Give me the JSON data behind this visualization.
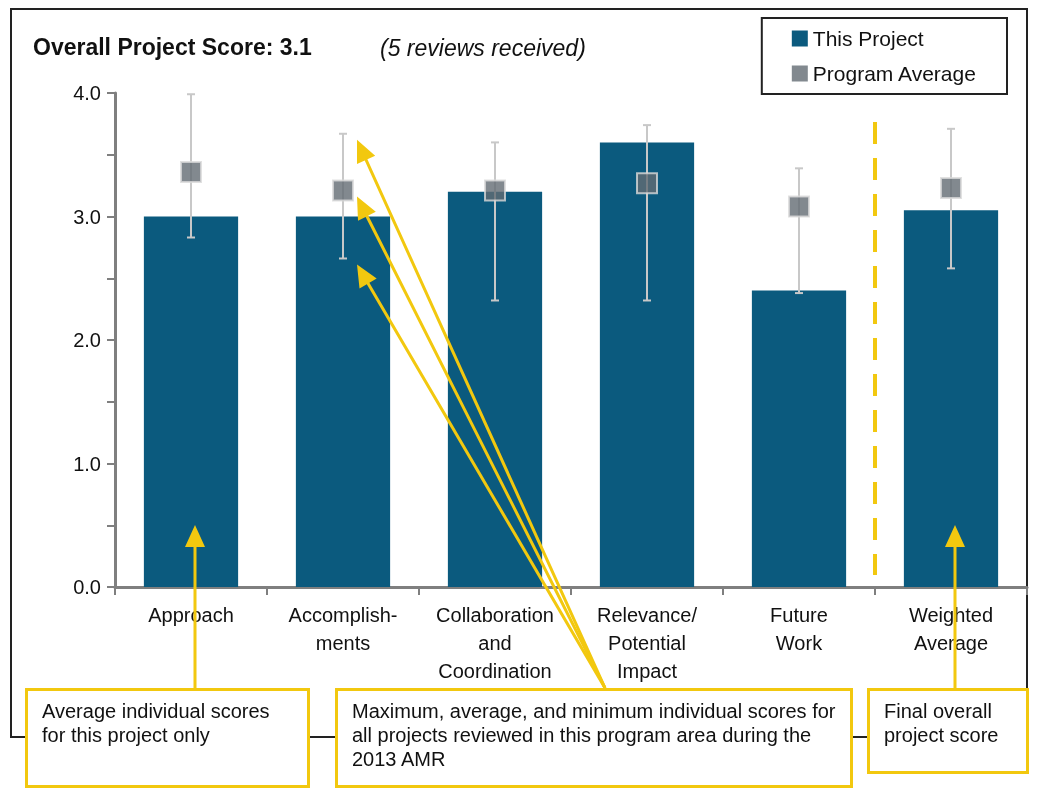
{
  "chart_data": {
    "type": "bar",
    "title": "Overall Project Score: 3.1",
    "subtitle": "(5 reviews received)",
    "categories": [
      "Approach",
      "Accomplish-\nments",
      "Collaboration\nand\nCoordination",
      "Relevance/\nPotential\nImpact",
      "Future\nWork",
      "Weighted\nAverage"
    ],
    "series": [
      {
        "name": "This Project",
        "color": "#0b5a7e",
        "values": [
          3.0,
          3.0,
          3.2,
          3.6,
          2.4,
          3.05
        ]
      },
      {
        "name": "Program Average",
        "type": "scatter",
        "color": "#636b73",
        "marker": "square",
        "values": [
          3.36,
          3.21,
          3.21,
          3.27,
          3.08,
          3.23
        ],
        "errors": [
          [
            2.83,
            3.99
          ],
          [
            2.66,
            3.67
          ],
          [
            2.32,
            3.6
          ],
          [
            2.32,
            3.74
          ],
          [
            2.38,
            3.39
          ],
          [
            2.58,
            3.71
          ]
        ]
      }
    ],
    "ylim": [
      0,
      4
    ],
    "yticks": [
      {
        "value": 0,
        "label": "0.0"
      },
      {
        "value": 0.5,
        "label": null
      },
      {
        "value": 1,
        "label": "1.0"
      },
      {
        "value": 1.5,
        "label": null
      },
      {
        "value": 2,
        "label": "2.0"
      },
      {
        "value": 2.5,
        "label": null
      },
      {
        "value": 3,
        "label": "3.0"
      },
      {
        "value": 3.5,
        "label": null
      },
      {
        "value": 4,
        "label": "4.0"
      }
    ],
    "grid": false,
    "legend": "top right",
    "annotations": [
      "Average individual scores for this project only",
      "Maximum, average, and minimum individual scores for all projects reviewed in this program area during the 2013 AMR",
      "Final overall project score"
    ]
  }
}
